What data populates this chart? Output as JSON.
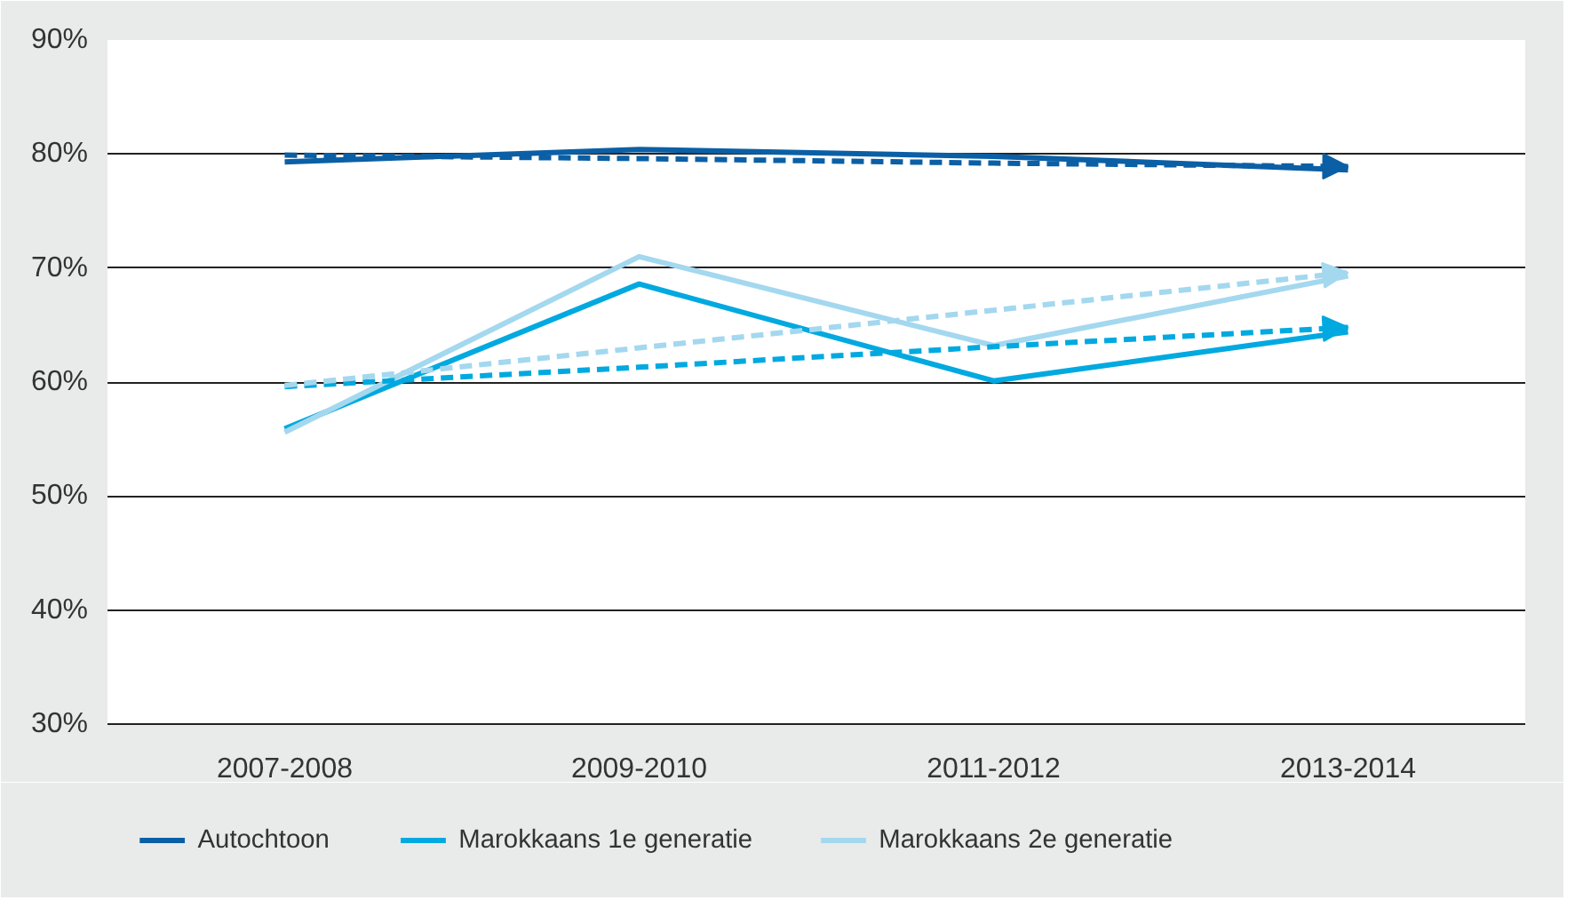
{
  "chart_data": {
    "type": "line",
    "categories": [
      "2007-2008",
      "2009-2010",
      "2011-2012",
      "2013-2014"
    ],
    "ylim": [
      30,
      90
    ],
    "yticks": [
      {
        "value": 30,
        "label": "30%"
      },
      {
        "value": 40,
        "label": "40%"
      },
      {
        "value": 50,
        "label": "50%"
      },
      {
        "value": 60,
        "label": "60%"
      },
      {
        "value": 70,
        "label": "70%"
      },
      {
        "value": 80,
        "label": "80%"
      },
      {
        "value": 90,
        "label": "90%"
      }
    ],
    "grid": "y",
    "legend": "bottom",
    "line_style": "solid",
    "marker": "none",
    "series": [
      {
        "name": "Autochtoon",
        "color": "#0b5fa5",
        "values": [
          79.3,
          80.4,
          79.8,
          78.6
        ]
      },
      {
        "name": "Marokkaans 1e generatie",
        "color": "#00a9e0",
        "values": [
          55.9,
          68.6,
          60.1,
          64.4
        ]
      },
      {
        "name": "Marokkaans 2e generatie",
        "color": "#a3d8ef",
        "values": [
          55.6,
          71.0,
          63.2,
          69.3
        ]
      },
      {
        "type": "line",
        "color": "#0b5fa5",
        "line_style": "dashed",
        "values": [
          79.9,
          79.6,
          79.2,
          78.9
        ]
      },
      {
        "type": "line",
        "color": "#00a9e0",
        "line_style": "dashed",
        "values": [
          59.6,
          61.3,
          63.1,
          64.8
        ]
      },
      {
        "type": "line",
        "color": "#a3d8ef",
        "line_style": "dashed",
        "values": [
          59.7,
          63.0,
          66.3,
          69.6
        ]
      }
    ]
  }
}
